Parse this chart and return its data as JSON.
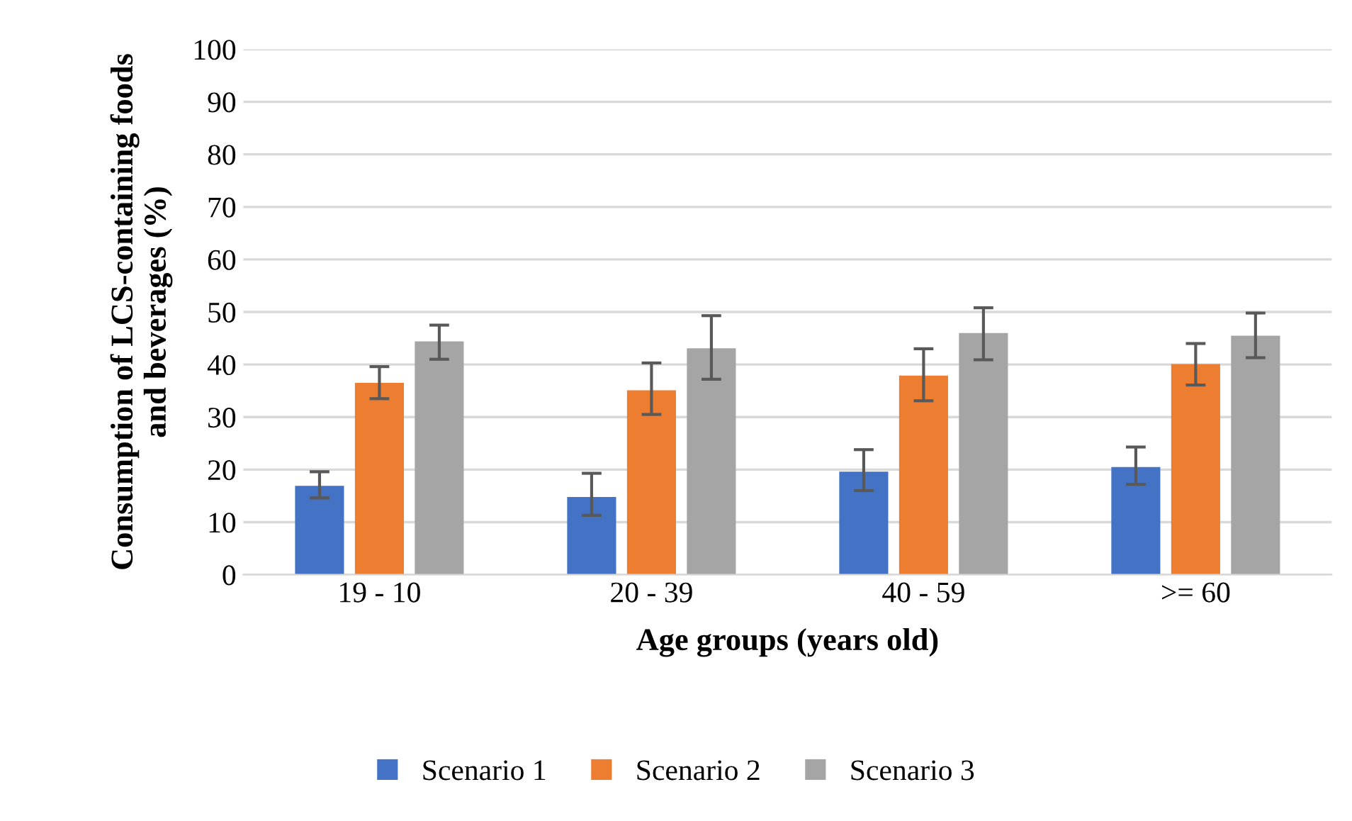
{
  "chart_data": {
    "type": "bar",
    "xlabel": "Age groups (years old)",
    "ylabel": "Consumption of LCS-containing foods\nand beverages (%)",
    "categories": [
      "19 - 10",
      "20 - 39",
      "40 - 59",
      ">= 60"
    ],
    "series": [
      {
        "name": "Scenario 1",
        "color": "#4472c4",
        "values": [
          16.9,
          14.8,
          19.6,
          20.5
        ],
        "errors": [
          [
            14.6,
            19.6
          ],
          [
            11.3,
            19.3
          ],
          [
            16.0,
            23.8
          ],
          [
            17.2,
            24.3
          ]
        ]
      },
      {
        "name": "Scenario 2",
        "color": "#ed7d31",
        "values": [
          36.5,
          35.1,
          37.9,
          40.1
        ],
        "errors": [
          [
            33.5,
            39.6
          ],
          [
            30.5,
            40.3
          ],
          [
            33.1,
            43.0
          ],
          [
            36.1,
            44.0
          ]
        ]
      },
      {
        "name": "Scenario 3",
        "color": "#a5a5a5",
        "values": [
          44.4,
          43.1,
          46.0,
          45.5
        ],
        "errors": [
          [
            41.0,
            47.5
          ],
          [
            37.2,
            49.3
          ],
          [
            40.9,
            50.8
          ],
          [
            41.3,
            49.8
          ]
        ]
      }
    ],
    "ylim": [
      0,
      100
    ],
    "yticks": [
      0,
      10,
      20,
      30,
      40,
      50,
      60,
      70,
      80,
      90,
      100
    ],
    "grid": "y",
    "legend": "bottom"
  }
}
